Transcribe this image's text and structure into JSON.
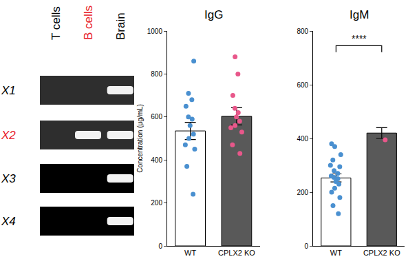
{
  "gel": {
    "columns": [
      {
        "label": "T cells",
        "color": "#000000"
      },
      {
        "label": "B cells",
        "color": "#e8202a"
      },
      {
        "label": "Brain",
        "color": "#000000"
      }
    ],
    "rows": [
      {
        "label": "X1",
        "color": "#000000",
        "bands": [
          false,
          false,
          true
        ]
      },
      {
        "label": "X2",
        "color": "#e8202a",
        "bands": [
          false,
          true,
          true
        ]
      },
      {
        "label": "X3",
        "color": "#000000",
        "bands": [
          false,
          false,
          true
        ]
      },
      {
        "label": "X4",
        "color": "#000000",
        "bands": [
          false,
          false,
          true
        ]
      }
    ]
  },
  "chart_data": [
    {
      "type": "bar",
      "title": "IgG",
      "y_label": "Concentration (μg/mL)",
      "categories": [
        "WT",
        "CPLX2 KO"
      ],
      "values": [
        535,
        603
      ],
      "errors": [
        40,
        40
      ],
      "colors": [
        "#ffffff",
        "#595959"
      ],
      "points": [
        {
          "category": "WT",
          "color": "#4a90d0",
          "values": [
            860,
            710,
            680,
            650,
            600,
            590,
            560,
            520,
            500,
            470,
            450,
            370,
            240
          ]
        },
        {
          "category": "CPLX2 KO",
          "color": "#e8578a",
          "values": [
            880,
            800,
            700,
            640,
            620,
            600,
            580,
            560,
            550,
            530,
            470,
            430
          ]
        }
      ],
      "ylim": [
        0,
        1000
      ],
      "yticks": [
        0,
        200,
        400,
        600,
        800,
        1000
      ],
      "grid": false
    },
    {
      "type": "bar",
      "title": "IgM",
      "categories": [
        "WT",
        "CPLX2 KO"
      ],
      "values": [
        253,
        420
      ],
      "errors": [
        15,
        20
      ],
      "colors": [
        "#ffffff",
        "#595959"
      ],
      "points": [
        {
          "category": "WT",
          "color": "#4a90d0",
          "values": [
            380,
            370,
            340,
            320,
            300,
            295,
            280,
            270,
            260,
            255,
            250,
            240,
            230,
            215,
            200,
            180,
            150,
            120
          ]
        },
        {
          "category": "CPLX2 KO",
          "color": "#e8578a",
          "values": [
            395
          ]
        }
      ],
      "significance": {
        "label": "****",
        "y": 745
      },
      "ylim": [
        0,
        800
      ],
      "yticks": [
        0,
        200,
        400,
        600,
        800
      ],
      "grid": false
    }
  ]
}
